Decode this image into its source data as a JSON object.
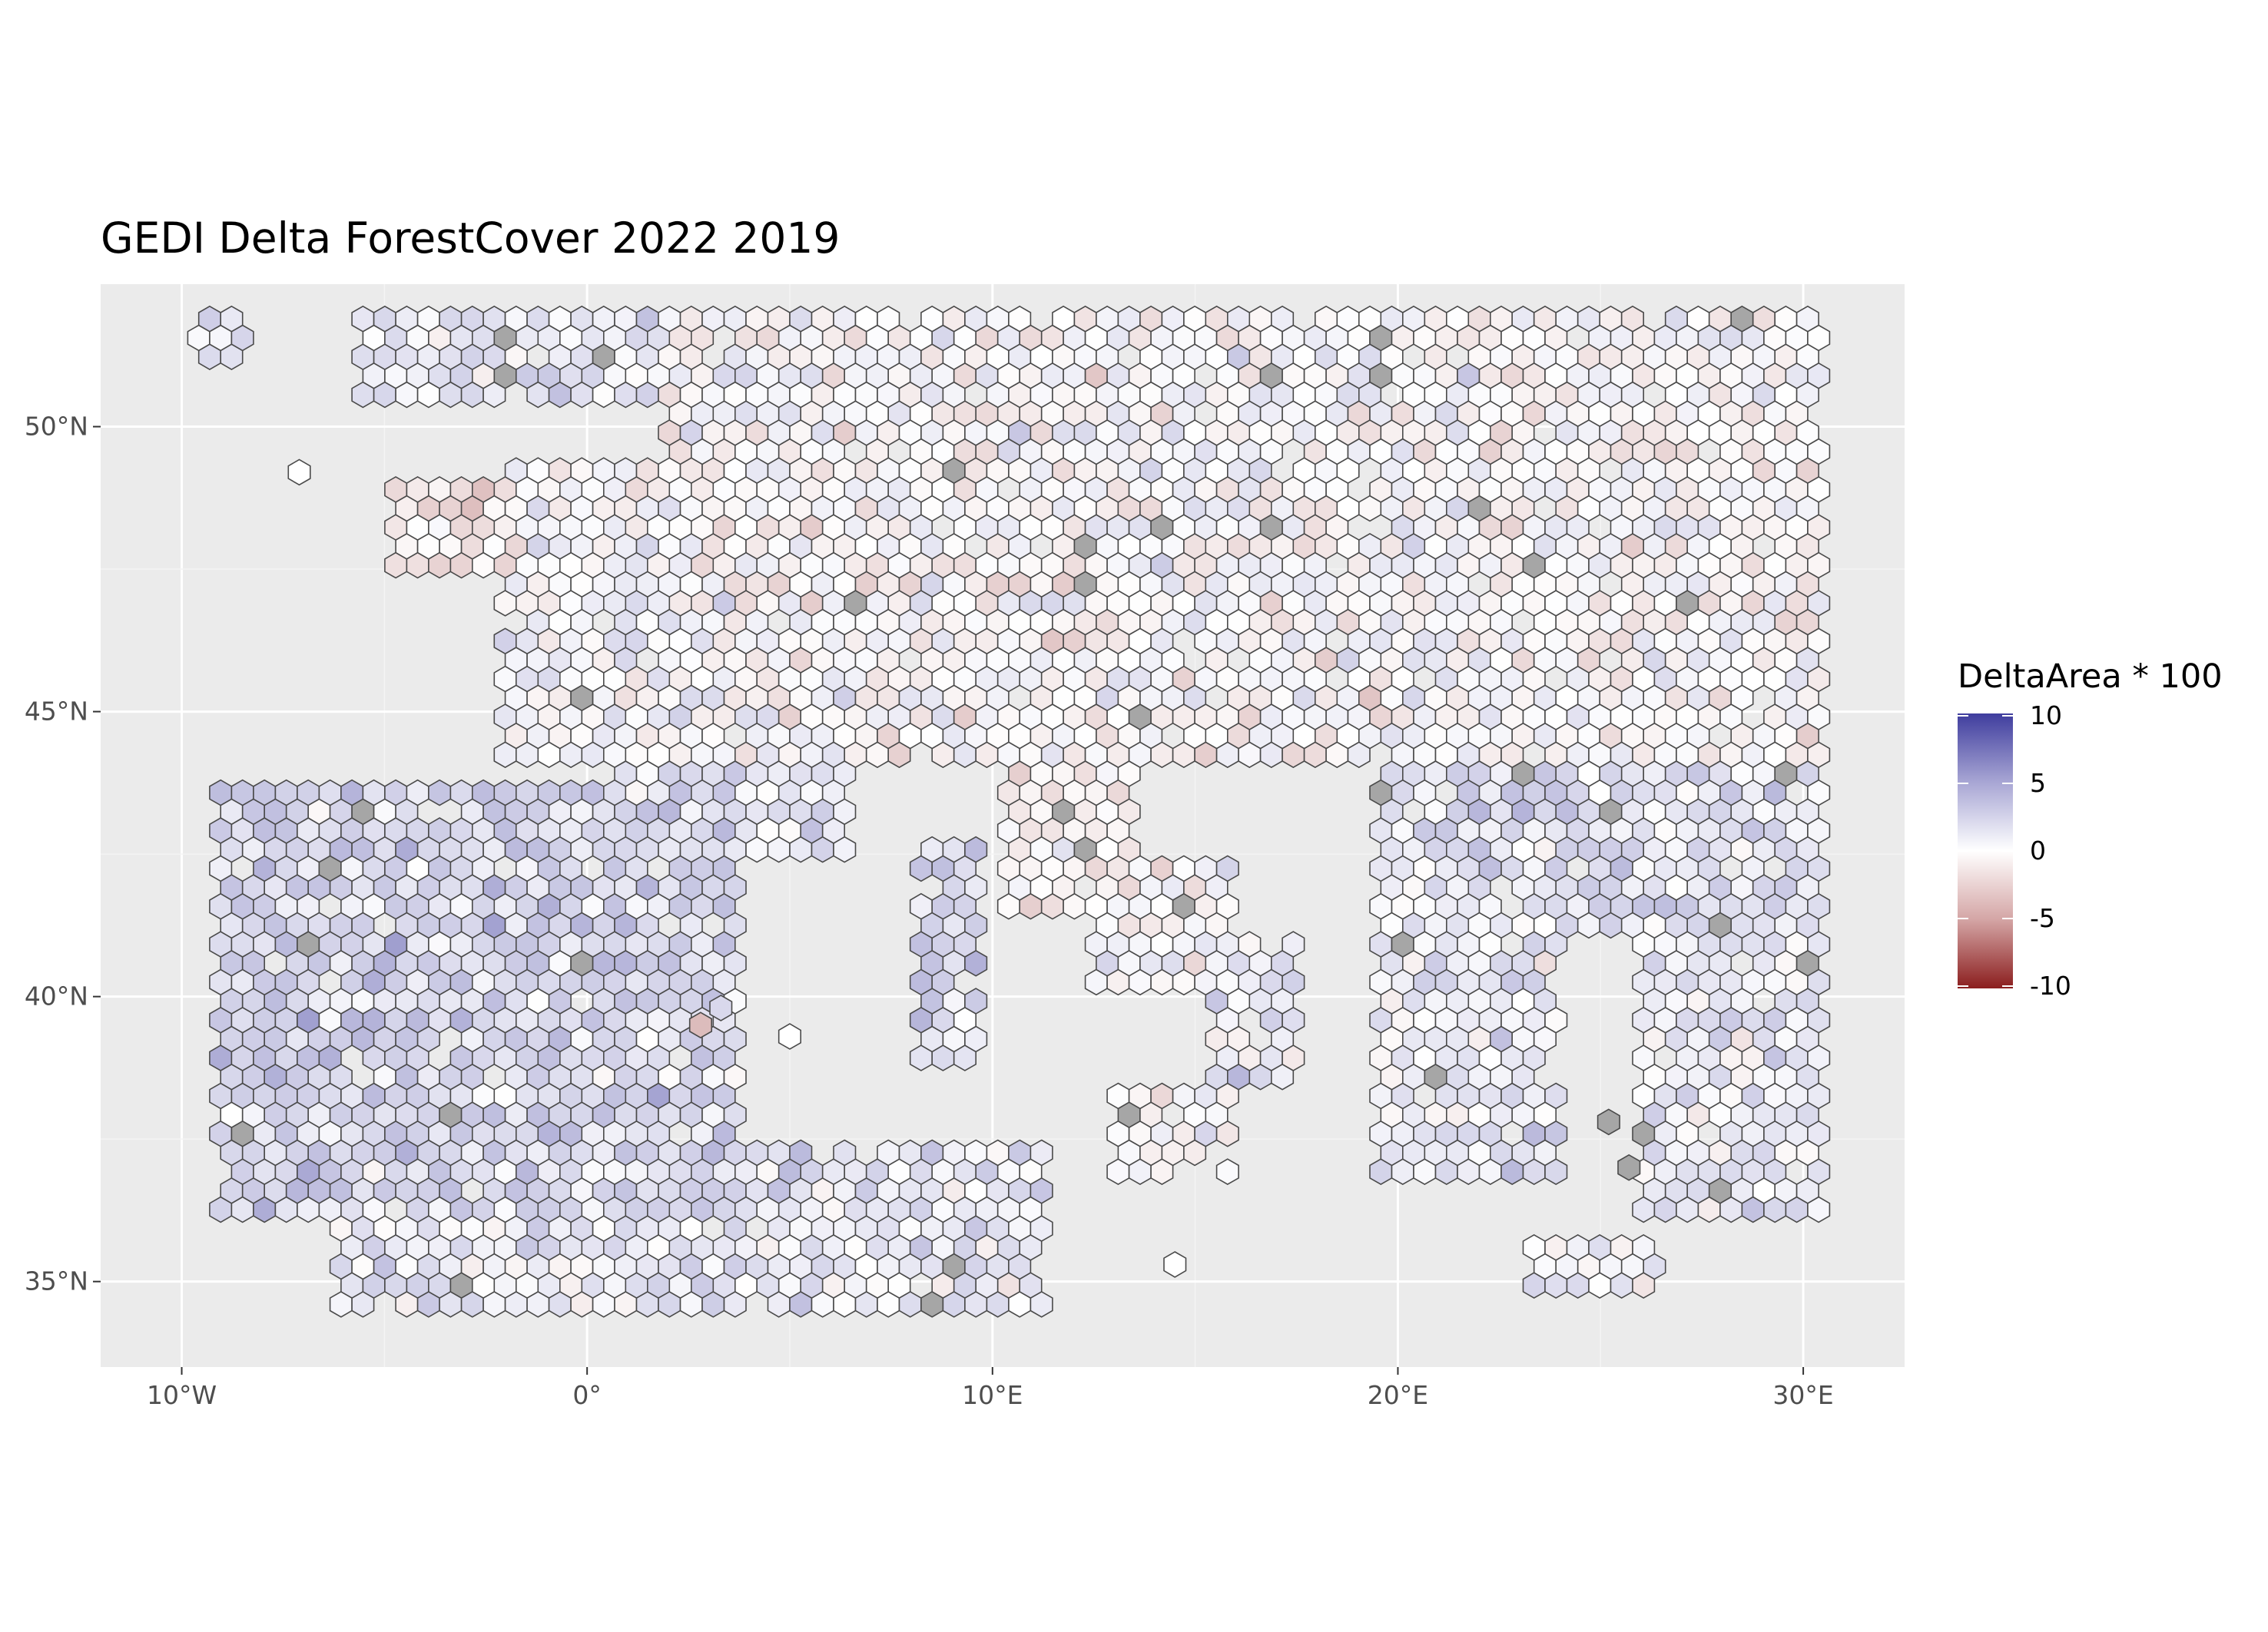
{
  "chart_data": {
    "type": "heatmap",
    "title": "GEDI Delta ForestCover 2022 2019",
    "geometry": "hexagonal-grid",
    "x_ticks": [
      "10°W",
      "0°",
      "10°E",
      "20°E",
      "30°E"
    ],
    "x_tick_values": [
      -10,
      0,
      10,
      20,
      30
    ],
    "y_ticks": [
      "35°N",
      "40°N",
      "45°N",
      "50°N"
    ],
    "y_tick_values": [
      35,
      40,
      45,
      50
    ],
    "xlim": [
      -12,
      32.5
    ],
    "ylim": [
      33.5,
      52.5
    ],
    "grid": true,
    "legend": {
      "title": "DeltaArea * 100",
      "ticks": [
        "10",
        "5",
        "0",
        "-5",
        "-10"
      ],
      "range": [
        -10,
        10
      ],
      "placement": "right",
      "colors": {
        "high": "#3f3d9e",
        "mid": "#ffffff",
        "low": "#8b1e1e",
        "na": "#a6a6a6"
      }
    },
    "hex_spacing_deg": 0.54,
    "regions": [
      {
        "lon": [
          -9.8,
          -8.4
        ],
        "lat": [
          51.2,
          51.9
        ],
        "mean": 1.5
      },
      {
        "lon": [
          -5.6,
          1.8
        ],
        "lat": [
          50.3,
          51.9
        ],
        "mean": 1.0
      },
      {
        "lon": [
          1.8,
          30.4
        ],
        "lat": [
          44.2,
          51.9
        ],
        "mean": 0.0
      },
      {
        "lon": [
          -4.8,
          -2.0
        ],
        "lat": [
          47.5,
          49.0
        ],
        "mean": -1.0
      },
      {
        "lon": [
          -2.2,
          1.8
        ],
        "lat": [
          44.0,
          49.5
        ],
        "mean": 0.5
      },
      {
        "lon": [
          -9.3,
          3.8
        ],
        "lat": [
          36.2,
          43.8
        ],
        "mean": 2.0
      },
      {
        "lon": [
          0.8,
          6.5
        ],
        "lat": [
          42.5,
          44.8
        ],
        "mean": 1.5
      },
      {
        "lon": [
          10.2,
          13.5
        ],
        "lat": [
          41.5,
          44.2
        ],
        "mean": -0.5
      },
      {
        "lon": [
          12.5,
          16.0
        ],
        "lat": [
          40.0,
          42.5
        ],
        "mean": 0.0
      },
      {
        "lon": [
          15.5,
          17.5
        ],
        "lat": [
          38.5,
          41.0
        ],
        "mean": 1.0
      },
      {
        "lon": [
          13.0,
          16.0
        ],
        "lat": [
          36.6,
          38.3
        ],
        "mean": 0.0
      },
      {
        "lon": [
          8.2,
          9.8
        ],
        "lat": [
          38.8,
          42.8
        ],
        "mean": 2.0
      },
      {
        "lon": [
          -6.2,
          11.3
        ],
        "lat": [
          34.4,
          37.3
        ],
        "mean": 1.0
      },
      {
        "lon": [
          19.5,
          24.0
        ],
        "lat": [
          36.8,
          42.0
        ],
        "mean": 1.0
      },
      {
        "lon": [
          19.5,
          30.4
        ],
        "lat": [
          41.0,
          44.5
        ],
        "mean": 1.5
      },
      {
        "lon": [
          26.0,
          30.4
        ],
        "lat": [
          36.0,
          41.5
        ],
        "mean": 1.0
      },
      {
        "lon": [
          23.3,
          26.4
        ],
        "lat": [
          34.8,
          35.6
        ],
        "mean": 0.5
      }
    ],
    "isolated_points": [
      {
        "lon": -7.1,
        "lat": 49.2,
        "value": 0.0
      },
      {
        "lon": 2.8,
        "lat": 39.5,
        "value": -3.0
      },
      {
        "lon": 3.3,
        "lat": 39.8,
        "value": 2.0
      },
      {
        "lon": 5.0,
        "lat": 39.3,
        "value": 0.0
      },
      {
        "lon": 14.5,
        "lat": 35.3,
        "value": 0.0
      },
      {
        "lon": 25.2,
        "lat": 37.8,
        "value": null
      },
      {
        "lon": 25.7,
        "lat": 37.0,
        "value": null
      }
    ]
  }
}
